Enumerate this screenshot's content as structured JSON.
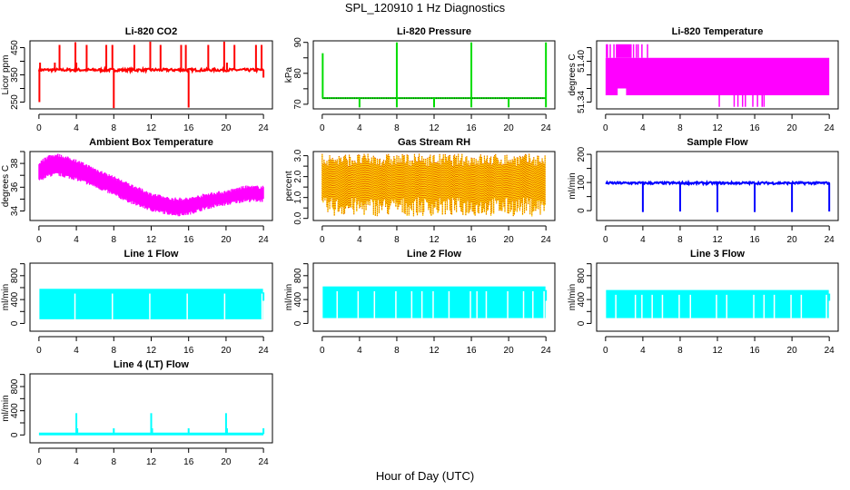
{
  "figure": {
    "title": "SPL_120910  1 Hz Diagnostics",
    "xlabel": "Hour of Day (UTC)"
  },
  "chart_data": [
    {
      "id": "co2",
      "type": "line",
      "title": "Li-820 CO2",
      "ylabel": "Licor ppm",
      "color": "#ff0000",
      "xlim": [
        0,
        24
      ],
      "ylim": [
        225,
        475
      ],
      "xticks": [
        0,
        4,
        8,
        12,
        16,
        20,
        24
      ],
      "yticks": [
        250,
        300,
        350,
        400,
        450
      ],
      "ytick_labels": [
        "250",
        "",
        "350",
        "",
        "450"
      ],
      "baseline": 368,
      "spikes": [
        {
          "x": 0.05,
          "y": 250
        },
        {
          "x": 0.12,
          "y": 395
        },
        {
          "x": 1.7,
          "y": 395
        },
        {
          "x": 2.2,
          "y": 460
        },
        {
          "x": 3.9,
          "y": 470
        },
        {
          "x": 4.0,
          "y": 395
        },
        {
          "x": 5.1,
          "y": 460
        },
        {
          "x": 7.2,
          "y": 460
        },
        {
          "x": 7.85,
          "y": 460
        },
        {
          "x": 8.0,
          "y": 228
        },
        {
          "x": 10.2,
          "y": 460
        },
        {
          "x": 11.9,
          "y": 472
        },
        {
          "x": 13.0,
          "y": 460
        },
        {
          "x": 15.2,
          "y": 460
        },
        {
          "x": 15.7,
          "y": 460
        },
        {
          "x": 16.0,
          "y": 230
        },
        {
          "x": 18.1,
          "y": 460
        },
        {
          "x": 19.8,
          "y": 472
        },
        {
          "x": 20.1,
          "y": 395
        },
        {
          "x": 20.9,
          "y": 460
        },
        {
          "x": 23.2,
          "y": 460
        },
        {
          "x": 23.8,
          "y": 460
        },
        {
          "x": 24.0,
          "y": 340
        }
      ]
    },
    {
      "id": "pressure",
      "type": "line",
      "title": "Li-820 Pressure",
      "ylabel": "kPa",
      "color": "#00dd00",
      "xlim": [
        0,
        24
      ],
      "ylim": [
        68.5,
        90.5
      ],
      "xticks": [
        0,
        4,
        8,
        12,
        16,
        20,
        24
      ],
      "yticks": [
        70,
        75,
        80,
        85,
        90
      ],
      "ytick_labels": [
        "70",
        "",
        "80",
        "",
        "90"
      ],
      "baseline": 72,
      "spikes": [
        {
          "x": 0.05,
          "y": 86.5
        },
        {
          "x": 4.0,
          "y": 69
        },
        {
          "x": 8.0,
          "y": 90
        },
        {
          "x": 8.0,
          "y": 69
        },
        {
          "x": 12.0,
          "y": 69
        },
        {
          "x": 16.0,
          "y": 90
        },
        {
          "x": 16.0,
          "y": 69
        },
        {
          "x": 20.0,
          "y": 69
        },
        {
          "x": 24.0,
          "y": 90
        },
        {
          "x": 24.0,
          "y": 69
        }
      ]
    },
    {
      "id": "licor-temp",
      "type": "area",
      "title": "Li-820 Temperature",
      "ylabel": "degrees C",
      "color": "#ff00ff",
      "xlim": [
        0,
        24
      ],
      "ylim": [
        51.33,
        51.43
      ],
      "xticks": [
        0,
        4,
        8,
        12,
        16,
        20,
        24
      ],
      "yticks": [
        51.34,
        51.36,
        51.38,
        51.4,
        51.42
      ],
      "ytick_labels": [
        "51.34",
        "",
        "",
        "51.40",
        ""
      ],
      "band": {
        "low": 51.35,
        "high": 51.405
      },
      "notes": "values quantized between 51.35 and 51.405 with occasional excursions to 51.425 (0-4.5 h) and 51.333 (12-17 h)"
    },
    {
      "id": "box-temp",
      "type": "area",
      "title": "Ambient Box Temperature",
      "ylabel": "degrees C",
      "color": "#ff00ff",
      "xlim": [
        0,
        24
      ],
      "ylim": [
        33.2,
        39.0
      ],
      "xticks": [
        0,
        4,
        8,
        12,
        16,
        20,
        24
      ],
      "yticks": [
        34,
        35,
        36,
        37,
        38,
        39
      ],
      "ytick_labels": [
        "34",
        "",
        "36",
        "",
        "38",
        ""
      ],
      "series": [
        {
          "name": "high",
          "x": [
            0,
            1,
            2,
            4,
            6,
            8,
            10,
            12,
            14,
            15,
            16,
            18,
            20,
            22,
            24
          ],
          "y": [
            38.0,
            38.6,
            38.7,
            38.2,
            37.5,
            36.8,
            36.1,
            35.4,
            35.0,
            35.0,
            35.0,
            35.4,
            35.6,
            36.0,
            36.0
          ]
        },
        {
          "name": "low",
          "x": [
            0,
            1,
            2,
            4,
            6,
            8,
            10,
            12,
            14,
            15,
            16,
            18,
            20,
            22,
            24
          ],
          "y": [
            36.6,
            37.0,
            37.1,
            36.7,
            36.1,
            35.4,
            34.7,
            34.1,
            33.8,
            33.7,
            33.8,
            34.3,
            34.6,
            34.9,
            34.9
          ]
        }
      ]
    },
    {
      "id": "rh",
      "type": "area",
      "title": "Gas Stream RH",
      "ylabel": "percent",
      "color": "#ffd700",
      "color2": "#dd4400",
      "xlim": [
        0,
        24
      ],
      "ylim": [
        -0.1,
        3.2
      ],
      "xticks": [
        0,
        4,
        8,
        12,
        16,
        20,
        24
      ],
      "yticks": [
        0.0,
        0.5,
        1.0,
        1.5,
        2.0,
        2.5,
        3.0
      ],
      "ytick_labels": [
        "0.0",
        "",
        "1.0",
        "",
        "2.0",
        "",
        "3.0"
      ],
      "band": {
        "low": 1.0,
        "high": 2.5,
        "min": 0.1,
        "max": 3.1
      }
    },
    {
      "id": "sample-flow",
      "type": "line",
      "title": "Sample Flow",
      "ylabel": "ml/min",
      "color": "#0000ff",
      "xlim": [
        0,
        24
      ],
      "ylim": [
        -35,
        210
      ],
      "xticks": [
        0,
        4,
        8,
        12,
        16,
        20,
        24
      ],
      "yticks": [
        0,
        50,
        100,
        150,
        200
      ],
      "ytick_labels": [
        "0",
        "",
        "100",
        "",
        "200"
      ],
      "baseline": 98,
      "spikes": [
        {
          "x": 4.0,
          "y": -5
        },
        {
          "x": 8.0,
          "y": -3
        },
        {
          "x": 12.0,
          "y": -5
        },
        {
          "x": 16.0,
          "y": -5
        },
        {
          "x": 20.0,
          "y": -5
        },
        {
          "x": 24.0,
          "y": -3
        }
      ]
    },
    {
      "id": "line1",
      "type": "area",
      "title": "Line 1 Flow",
      "ylabel": "ml/min",
      "color": "#00ffff",
      "xlim": [
        0,
        24
      ],
      "ylim": [
        -130,
        1010
      ],
      "xticks": [
        0,
        4,
        8,
        12,
        16,
        20,
        24
      ],
      "yticks": [
        0,
        200,
        400,
        600,
        800,
        1000
      ],
      "ytick_labels": [
        "0",
        "",
        "400",
        "",
        "800",
        ""
      ],
      "band": {
        "low": 70,
        "high": 580
      },
      "gaps": [
        3.85,
        7.85,
        11.85,
        15.85,
        19.85,
        23.85
      ]
    },
    {
      "id": "line2",
      "type": "area",
      "title": "Line 2 Flow",
      "ylabel": "ml/min",
      "color": "#00ffff",
      "xlim": [
        0,
        24
      ],
      "ylim": [
        -130,
        1010
      ],
      "xticks": [
        0,
        4,
        8,
        12,
        16,
        20,
        24
      ],
      "yticks": [
        0,
        200,
        400,
        600,
        800,
        1000
      ],
      "ytick_labels": [
        "0",
        "",
        "400",
        "",
        "800",
        ""
      ],
      "band": {
        "low": 90,
        "high": 620
      },
      "gaps": [
        1.6,
        3.85,
        5.6,
        7.9,
        9.6,
        10.7,
        11.9,
        13.6,
        15.9,
        16.6,
        17.6,
        19.9,
        21.6,
        22.6,
        23.8
      ]
    },
    {
      "id": "line3",
      "type": "area",
      "title": "Line 3 Flow",
      "ylabel": "ml/min",
      "color": "#00ffff",
      "xlim": [
        0,
        24
      ],
      "ylim": [
        -130,
        1010
      ],
      "xticks": [
        0,
        4,
        8,
        12,
        16,
        20,
        24
      ],
      "yticks": [
        0,
        200,
        400,
        600,
        800,
        1000
      ],
      "ytick_labels": [
        "0",
        "",
        "400",
        "",
        "800",
        ""
      ],
      "band": {
        "low": 90,
        "high": 560
      },
      "gaps": [
        1.1,
        3.2,
        3.9,
        5.0,
        6.1,
        7.9,
        9.1,
        11.9,
        13.0,
        15.9,
        17.0,
        18.1,
        19.9,
        21.0,
        23.7
      ]
    },
    {
      "id": "line4",
      "type": "line",
      "title": "Line 4 (LT) Flow",
      "ylabel": "ml/min",
      "color": "#00ffff",
      "xlim": [
        0,
        24
      ],
      "ylim": [
        -130,
        1010
      ],
      "xticks": [
        0,
        4,
        8,
        12,
        16,
        20,
        24
      ],
      "yticks": [
        0,
        200,
        400,
        600,
        800,
        1000
      ],
      "ytick_labels": [
        "0",
        "",
        "400",
        "",
        "800",
        ""
      ],
      "baseline": 15,
      "spikes": [
        {
          "x": 4.0,
          "y": 360
        },
        {
          "x": 4.1,
          "y": 110
        },
        {
          "x": 8.0,
          "y": 110
        },
        {
          "x": 12.0,
          "y": 360
        },
        {
          "x": 12.1,
          "y": 110
        },
        {
          "x": 16.0,
          "y": 110
        },
        {
          "x": 20.0,
          "y": 360
        },
        {
          "x": 20.1,
          "y": 110
        },
        {
          "x": 24.0,
          "y": 110
        }
      ]
    }
  ]
}
